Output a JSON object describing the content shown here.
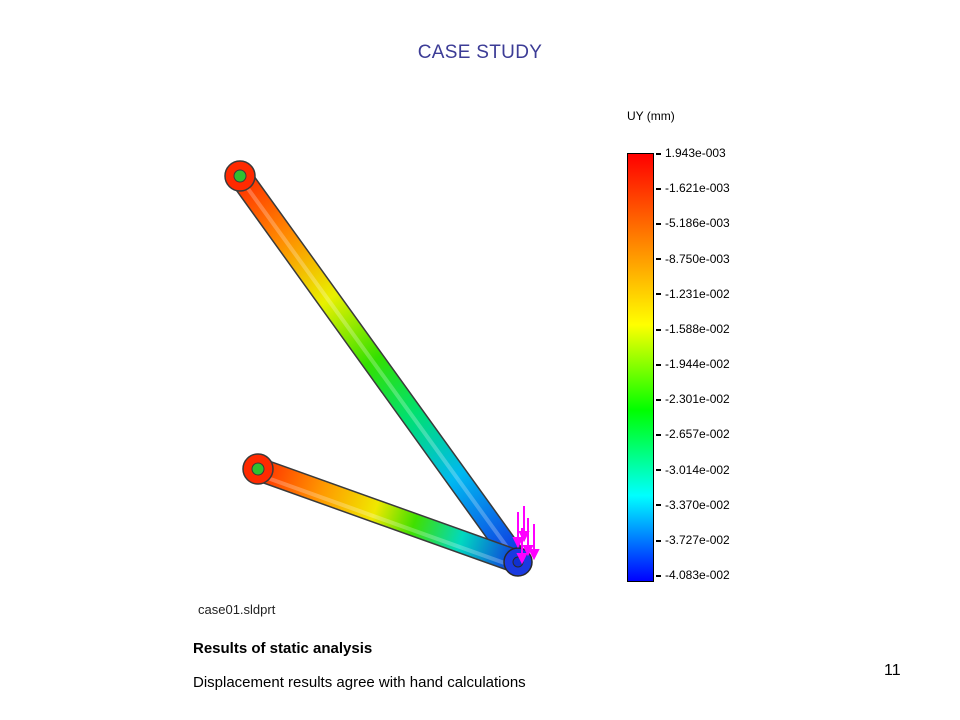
{
  "slide": {
    "title": "CASE STUDY",
    "page_number": "11",
    "filename": "case01.sldprt",
    "caption_title": "Results of static analysis",
    "caption_body": "Displacement results agree with hand calculations"
  },
  "legend": {
    "title": "UY (mm)",
    "labels": [
      "1.943e-003",
      "-1.621e-003",
      "-5.186e-003",
      "-8.750e-003",
      "-1.231e-002",
      "-1.588e-002",
      "-1.944e-002",
      "-2.301e-002",
      "-2.657e-002",
      "-3.014e-002",
      "-3.370e-002",
      "-3.727e-002",
      "-4.083e-002"
    ],
    "colors": [
      "#ff0000",
      "#ff8000",
      "#ffff00",
      "#00ff00",
      "#00ffff",
      "#0000ff"
    ]
  },
  "colors": {
    "title": "#3c3c96",
    "load_arrows": "#ff00ff",
    "outline": "#4a4a4a"
  }
}
